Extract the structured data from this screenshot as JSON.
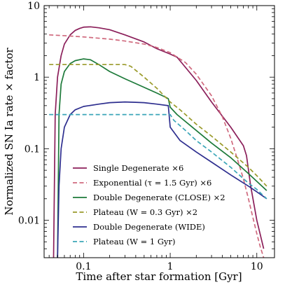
{
  "chart_data": {
    "type": "line",
    "title": "",
    "xlabel": "Time after star formation [Gyr]",
    "ylabel": "Normalized SN Ia rate × factor",
    "xscale": "log",
    "yscale": "log",
    "xlim": [
      0.035,
      16
    ],
    "ylim": [
      0.003,
      10
    ],
    "x_ticks": [
      0.1,
      1,
      10
    ],
    "x_tick_labels": [
      "0.1",
      "1",
      "10"
    ],
    "y_ticks": [
      0.01,
      0.1,
      1,
      10
    ],
    "y_tick_labels": [
      "0.01",
      "0.1",
      "1",
      "10"
    ],
    "grid": false,
    "legend": {
      "location": "lower-left"
    },
    "series": [
      {
        "name": "Single Degenerate ×6",
        "color": "#8b1f5a",
        "dash": "solid",
        "x": [
          0.045,
          0.047,
          0.05,
          0.055,
          0.06,
          0.07,
          0.08,
          0.09,
          0.1,
          0.12,
          0.15,
          0.2,
          0.3,
          0.5,
          0.7,
          1.0,
          1.2,
          2,
          3,
          5,
          7,
          7.6,
          8.5,
          10,
          12
        ],
        "y": [
          0.003,
          0.3,
          1.0,
          2.0,
          2.9,
          3.9,
          4.5,
          4.8,
          5.0,
          5.05,
          4.9,
          4.6,
          3.9,
          3.1,
          2.5,
          2.1,
          1.9,
          0.9,
          0.45,
          0.2,
          0.11,
          0.08,
          0.03,
          0.01,
          0.004
        ]
      },
      {
        "name": "Exponential (τ = 1.5 Gyr) ×6",
        "color": "#d06a7e",
        "dash": "dashed",
        "x": [
          0.04,
          0.06,
          0.1,
          0.2,
          0.3,
          0.5,
          0.7,
          1.0,
          1.5,
          2,
          3,
          4,
          5,
          6,
          7,
          8,
          9,
          10,
          11,
          12
        ],
        "y": [
          3.9,
          3.8,
          3.65,
          3.4,
          3.2,
          2.9,
          2.6,
          2.2,
          1.6,
          1.1,
          0.55,
          0.28,
          0.14,
          0.07,
          0.038,
          0.02,
          0.011,
          0.0065,
          0.0042,
          0.003
        ]
      },
      {
        "name": "Double Degenerate (CLOSE) ×2",
        "color": "#1d7a3a",
        "dash": "solid",
        "x": [
          0.05,
          0.052,
          0.055,
          0.06,
          0.07,
          0.08,
          0.1,
          0.12,
          0.15,
          0.2,
          0.3,
          0.5,
          0.7,
          0.9,
          0.95,
          1.0,
          1.2,
          2,
          3,
          5,
          8,
          10,
          13
        ],
        "y": [
          0.003,
          0.3,
          0.8,
          1.2,
          1.55,
          1.7,
          1.8,
          1.75,
          1.5,
          1.2,
          0.95,
          0.72,
          0.6,
          0.52,
          0.5,
          0.38,
          0.3,
          0.18,
          0.12,
          0.075,
          0.045,
          0.035,
          0.026
        ]
      },
      {
        "name": "Plateau (W = 0.3 Gyr) ×2",
        "color": "#9a9a2a",
        "dash": "dashed",
        "x": [
          0.04,
          0.1,
          0.2,
          0.3,
          0.35,
          0.5,
          0.7,
          1.0,
          1.3,
          2,
          3,
          5,
          8,
          10,
          13
        ],
        "y": [
          1.5,
          1.5,
          1.5,
          1.5,
          1.42,
          1.0,
          0.7,
          0.45,
          0.35,
          0.22,
          0.15,
          0.09,
          0.055,
          0.042,
          0.03
        ]
      },
      {
        "name": "Double Degenerate (WIDE)",
        "color": "#2e2f8f",
        "dash": "solid",
        "x": [
          0.05,
          0.052,
          0.055,
          0.06,
          0.07,
          0.08,
          0.1,
          0.15,
          0.2,
          0.3,
          0.4,
          0.5,
          0.7,
          0.95,
          1.0,
          1.3,
          2,
          3,
          5,
          8,
          10,
          13
        ],
        "y": [
          0.003,
          0.03,
          0.1,
          0.2,
          0.3,
          0.35,
          0.39,
          0.42,
          0.44,
          0.45,
          0.445,
          0.44,
          0.42,
          0.4,
          0.2,
          0.13,
          0.09,
          0.065,
          0.043,
          0.03,
          0.025,
          0.02
        ]
      },
      {
        "name": "Plateau (W = 1 Gyr)",
        "color": "#3ba6b8",
        "dash": "dashed",
        "x": [
          0.04,
          0.1,
          0.3,
          0.5,
          1.0,
          1.1,
          1.5,
          2,
          3,
          5,
          8,
          10,
          13
        ],
        "y": [
          0.3,
          0.3,
          0.3,
          0.3,
          0.3,
          0.25,
          0.18,
          0.13,
          0.09,
          0.055,
          0.033,
          0.027,
          0.02
        ]
      }
    ]
  }
}
